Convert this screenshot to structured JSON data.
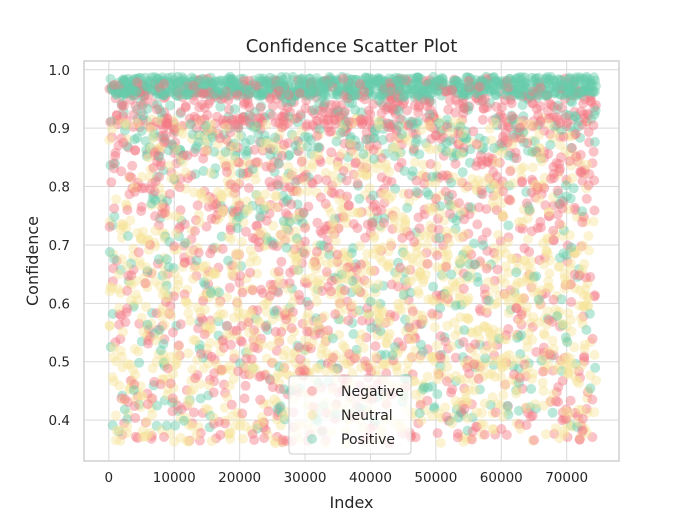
{
  "chart_data": {
    "type": "scatter",
    "title": "Confidence Scatter Plot",
    "xlabel": "Index",
    "ylabel": "Confidence",
    "xlim": [
      -3800,
      78000
    ],
    "ylim": [
      0.33,
      1.015
    ],
    "xticks": [
      0,
      10000,
      20000,
      30000,
      40000,
      50000,
      60000,
      70000
    ],
    "xtick_labels": [
      "0",
      "10000",
      "20000",
      "30000",
      "40000",
      "50000",
      "60000",
      "70000"
    ],
    "yticks": [
      0.4,
      0.5,
      0.6,
      0.7,
      0.8,
      0.9,
      1.0
    ],
    "ytick_labels": [
      "0.4",
      "0.5",
      "0.6",
      "0.7",
      "0.8",
      "0.9",
      "1.0"
    ],
    "grid": true,
    "legend_position": "lower-center",
    "point_alpha": 0.45,
    "series": [
      {
        "name": "Negative",
        "color": "#f47b86",
        "x_range": [
          0,
          74500
        ],
        "y_range": [
          0.36,
          0.99
        ],
        "count": 1400,
        "density_bias": "higher confidence more frequent"
      },
      {
        "name": "Neutral",
        "color": "#f6e49a",
        "x_range": [
          0,
          74500
        ],
        "y_range": [
          0.36,
          0.97
        ],
        "count": 1400,
        "density_bias": "more frequent at lower confidence"
      },
      {
        "name": "Positive",
        "color": "#66ccaa",
        "x_range": [
          0,
          74500
        ],
        "y_range": [
          0.38,
          0.99
        ],
        "count": 1400,
        "density_bias": "strongly concentrated near 0.97-0.99"
      }
    ]
  }
}
